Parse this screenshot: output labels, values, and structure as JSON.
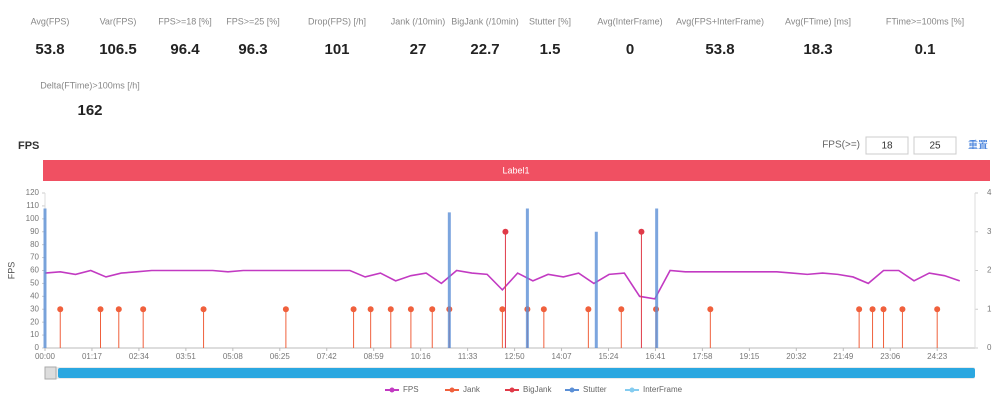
{
  "stats": [
    {
      "label": "Avg(FPS)",
      "value": "53.8"
    },
    {
      "label": "Var(FPS)",
      "value": "106.5"
    },
    {
      "label": "FPS>=18 [%]",
      "value": "96.4"
    },
    {
      "label": "FPS>=25 [%]",
      "value": "96.3"
    },
    {
      "label": "Drop(FPS) [/h]",
      "value": "101"
    },
    {
      "label": "Jank (/10min)",
      "value": "27"
    },
    {
      "label": "BigJank (/10min)",
      "value": "22.7"
    },
    {
      "label": "Stutter [%]",
      "value": "1.5"
    },
    {
      "label": "Avg(InterFrame)",
      "value": "0"
    },
    {
      "label": "Avg(FPS+InterFrame)",
      "value": "53.8"
    },
    {
      "label": "Avg(FTime) [ms]",
      "value": "18.3"
    },
    {
      "label": "FTime>=100ms [%]",
      "value": "0.1"
    },
    {
      "label": "Delta(FTime)>100ms [/h]",
      "value": "162"
    }
  ],
  "controls": {
    "section": "FPS",
    "threshold_label": "FPS(>=)",
    "inputs": [
      "18",
      "25"
    ],
    "reset": "重置",
    "scene": "Label1"
  },
  "chart_data": {
    "type": "line",
    "y_label": "FPS",
    "xlim": [
      0,
      1525
    ],
    "ylim": [
      0,
      120
    ],
    "y2lim": [
      0,
      4
    ],
    "yticks": [
      0,
      10,
      20,
      30,
      40,
      50,
      60,
      70,
      80,
      90,
      100,
      110,
      120
    ],
    "y2ticks": [
      0,
      1,
      2,
      3,
      4
    ],
    "xticks": [
      {
        "value": 0,
        "label": "00:00"
      },
      {
        "value": 77,
        "label": "01:17"
      },
      {
        "value": 154,
        "label": "02:34"
      },
      {
        "value": 231,
        "label": "03:51"
      },
      {
        "value": 308,
        "label": "05:08"
      },
      {
        "value": 385,
        "label": "06:25"
      },
      {
        "value": 462,
        "label": "07:42"
      },
      {
        "value": 539,
        "label": "08:59"
      },
      {
        "value": 616,
        "label": "10:16"
      },
      {
        "value": 693,
        "label": "11:33"
      },
      {
        "value": 770,
        "label": "12:50"
      },
      {
        "value": 847,
        "label": "14:07"
      },
      {
        "value": 924,
        "label": "15:24"
      },
      {
        "value": 1001,
        "label": "16:41"
      },
      {
        "value": 1078,
        "label": "17:58"
      },
      {
        "value": 1155,
        "label": "19:15"
      },
      {
        "value": 1232,
        "label": "20:32"
      },
      {
        "value": 1309,
        "label": "21:49"
      },
      {
        "value": 1386,
        "label": "23:06"
      },
      {
        "value": 1463,
        "label": "24:23"
      }
    ],
    "series": [
      {
        "name": "FPS",
        "kind": "line",
        "color": "#c23ac2",
        "x": [
          0,
          25,
          50,
          75,
          100,
          125,
          150,
          175,
          200,
          225,
          250,
          275,
          300,
          325,
          350,
          375,
          400,
          425,
          450,
          475,
          500,
          525,
          550,
          575,
          600,
          625,
          650,
          675,
          700,
          725,
          750,
          775,
          800,
          825,
          850,
          875,
          900,
          925,
          950,
          975,
          1000,
          1025,
          1050,
          1075,
          1100,
          1125,
          1150,
          1175,
          1200,
          1225,
          1250,
          1275,
          1300,
          1325,
          1350,
          1375,
          1400,
          1425,
          1450,
          1475,
          1500
        ],
        "values": [
          58,
          59,
          57,
          60,
          55,
          58,
          59,
          60,
          60,
          60,
          60,
          60,
          59,
          60,
          60,
          60,
          60,
          60,
          60,
          60,
          60,
          55,
          58,
          52,
          56,
          58,
          50,
          60,
          58,
          57,
          45,
          58,
          52,
          57,
          55,
          58,
          50,
          57,
          58,
          40,
          38,
          60,
          59,
          59,
          59,
          59,
          59,
          59,
          59,
          58,
          57,
          58,
          57,
          55,
          50,
          60,
          60,
          52,
          58,
          56,
          52
        ]
      },
      {
        "name": "Jank",
        "kind": "dot",
        "axis": "y2",
        "color": "#f0603c",
        "x": [
          25,
          91,
          121,
          161,
          260,
          395,
          506,
          534,
          567,
          600,
          635,
          663,
          750,
          791,
          818,
          891,
          945,
          1002,
          1091,
          1335,
          1357,
          1375,
          1406,
          1463
        ],
        "values": [
          1,
          1,
          1,
          1,
          1,
          1,
          1,
          1,
          1,
          1,
          1,
          1,
          1,
          1,
          1,
          1,
          1,
          1,
          1,
          1,
          1,
          1,
          1,
          1
        ]
      },
      {
        "name": "BigJank",
        "kind": "dot",
        "axis": "y2",
        "color": "#e03a48",
        "x": [
          755,
          978
        ],
        "values": [
          3,
          3
        ]
      },
      {
        "name": "Stutter",
        "kind": "spike",
        "axis": "y2",
        "color": "#5b8fd6",
        "x": [
          0,
          663,
          791,
          904,
          1003
        ],
        "values": [
          3.6,
          3.5,
          3.6,
          3.0,
          3.6
        ]
      },
      {
        "name": "InterFrame",
        "kind": "spike",
        "axis": "y2",
        "color": "#84ccf0",
        "x": [],
        "values": []
      }
    ]
  }
}
